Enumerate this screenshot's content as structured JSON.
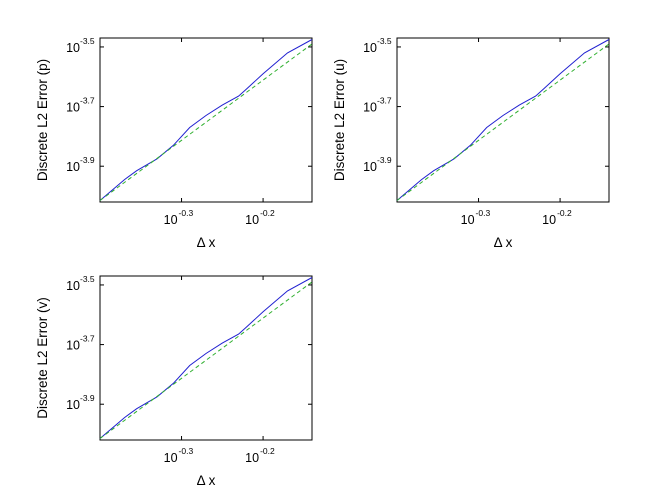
{
  "chart_data": [
    {
      "type": "line",
      "xlabel": "Δ x",
      "ylabel": "Discrete L2 Error (p)",
      "x_scale": "log10",
      "y_scale": "log10",
      "xlim_log10": [
        -0.4,
        -0.14
      ],
      "ylim_log10": [
        -4.02,
        -3.47
      ],
      "x_ticks": [
        {
          "base": "10",
          "exp": "-0.3",
          "log10": -0.3
        },
        {
          "base": "10",
          "exp": "-0.2",
          "log10": -0.2
        }
      ],
      "y_ticks": [
        {
          "base": "10",
          "exp": "-3.5",
          "log10": -3.5
        },
        {
          "base": "10",
          "exp": "-3.7",
          "log10": -3.7
        },
        {
          "base": "10",
          "exp": "-3.9",
          "log10": -3.9
        }
      ],
      "series": [
        {
          "color": "#2020d0",
          "style": "solid",
          "points_log10": [
            [
              -0.4,
              -4.015
            ],
            [
              -0.37,
              -3.945
            ],
            [
              -0.355,
              -3.915
            ],
            [
              -0.33,
              -3.875
            ],
            [
              -0.31,
              -3.83
            ],
            [
              -0.29,
              -3.77
            ],
            [
              -0.27,
              -3.73
            ],
            [
              -0.25,
              -3.695
            ],
            [
              -0.23,
              -3.665
            ],
            [
              -0.22,
              -3.64
            ],
            [
              -0.2,
              -3.59
            ],
            [
              -0.17,
              -3.52
            ],
            [
              -0.14,
              -3.475
            ]
          ]
        },
        {
          "color": "#30b030",
          "style": "dashed",
          "points_log10": [
            [
              -0.4,
              -4.015
            ],
            [
              -0.14,
              -3.49
            ]
          ]
        }
      ]
    },
    {
      "type": "line",
      "xlabel": "Δ x",
      "ylabel": "Discrete L2 Error (u)",
      "x_scale": "log10",
      "y_scale": "log10",
      "xlim_log10": [
        -0.4,
        -0.14
      ],
      "ylim_log10": [
        -4.02,
        -3.47
      ],
      "x_ticks": [
        {
          "base": "10",
          "exp": "-0.3",
          "log10": -0.3
        },
        {
          "base": "10",
          "exp": "-0.2",
          "log10": -0.2
        }
      ],
      "y_ticks": [
        {
          "base": "10",
          "exp": "-3.5",
          "log10": -3.5
        },
        {
          "base": "10",
          "exp": "-3.7",
          "log10": -3.7
        },
        {
          "base": "10",
          "exp": "-3.9",
          "log10": -3.9
        }
      ],
      "series": [
        {
          "color": "#2020d0",
          "style": "solid",
          "points_log10": [
            [
              -0.4,
              -4.015
            ],
            [
              -0.37,
              -3.945
            ],
            [
              -0.355,
              -3.915
            ],
            [
              -0.33,
              -3.875
            ],
            [
              -0.31,
              -3.83
            ],
            [
              -0.29,
              -3.77
            ],
            [
              -0.27,
              -3.73
            ],
            [
              -0.25,
              -3.695
            ],
            [
              -0.23,
              -3.665
            ],
            [
              -0.22,
              -3.64
            ],
            [
              -0.2,
              -3.59
            ],
            [
              -0.17,
              -3.52
            ],
            [
              -0.14,
              -3.475
            ]
          ]
        },
        {
          "color": "#30b030",
          "style": "dashed",
          "points_log10": [
            [
              -0.4,
              -4.015
            ],
            [
              -0.14,
              -3.49
            ]
          ]
        }
      ]
    },
    {
      "type": "line",
      "xlabel": "Δ x",
      "ylabel": "Discrete L2 Error (v)",
      "x_scale": "log10",
      "y_scale": "log10",
      "xlim_log10": [
        -0.4,
        -0.14
      ],
      "ylim_log10": [
        -4.02,
        -3.47
      ],
      "x_ticks": [
        {
          "base": "10",
          "exp": "-0.3",
          "log10": -0.3
        },
        {
          "base": "10",
          "exp": "-0.2",
          "log10": -0.2
        }
      ],
      "y_ticks": [
        {
          "base": "10",
          "exp": "-3.5",
          "log10": -3.5
        },
        {
          "base": "10",
          "exp": "-3.7",
          "log10": -3.7
        },
        {
          "base": "10",
          "exp": "-3.9",
          "log10": -3.9
        }
      ],
      "series": [
        {
          "color": "#2020d0",
          "style": "solid",
          "points_log10": [
            [
              -0.4,
              -4.015
            ],
            [
              -0.37,
              -3.945
            ],
            [
              -0.355,
              -3.915
            ],
            [
              -0.33,
              -3.875
            ],
            [
              -0.31,
              -3.83
            ],
            [
              -0.29,
              -3.77
            ],
            [
              -0.27,
              -3.73
            ],
            [
              -0.25,
              -3.695
            ],
            [
              -0.23,
              -3.665
            ],
            [
              -0.22,
              -3.64
            ],
            [
              -0.2,
              -3.59
            ],
            [
              -0.17,
              -3.52
            ],
            [
              -0.14,
              -3.475
            ]
          ]
        },
        {
          "color": "#30b030",
          "style": "dashed",
          "points_log10": [
            [
              -0.4,
              -4.015
            ],
            [
              -0.14,
              -3.49
            ]
          ]
        }
      ]
    }
  ]
}
